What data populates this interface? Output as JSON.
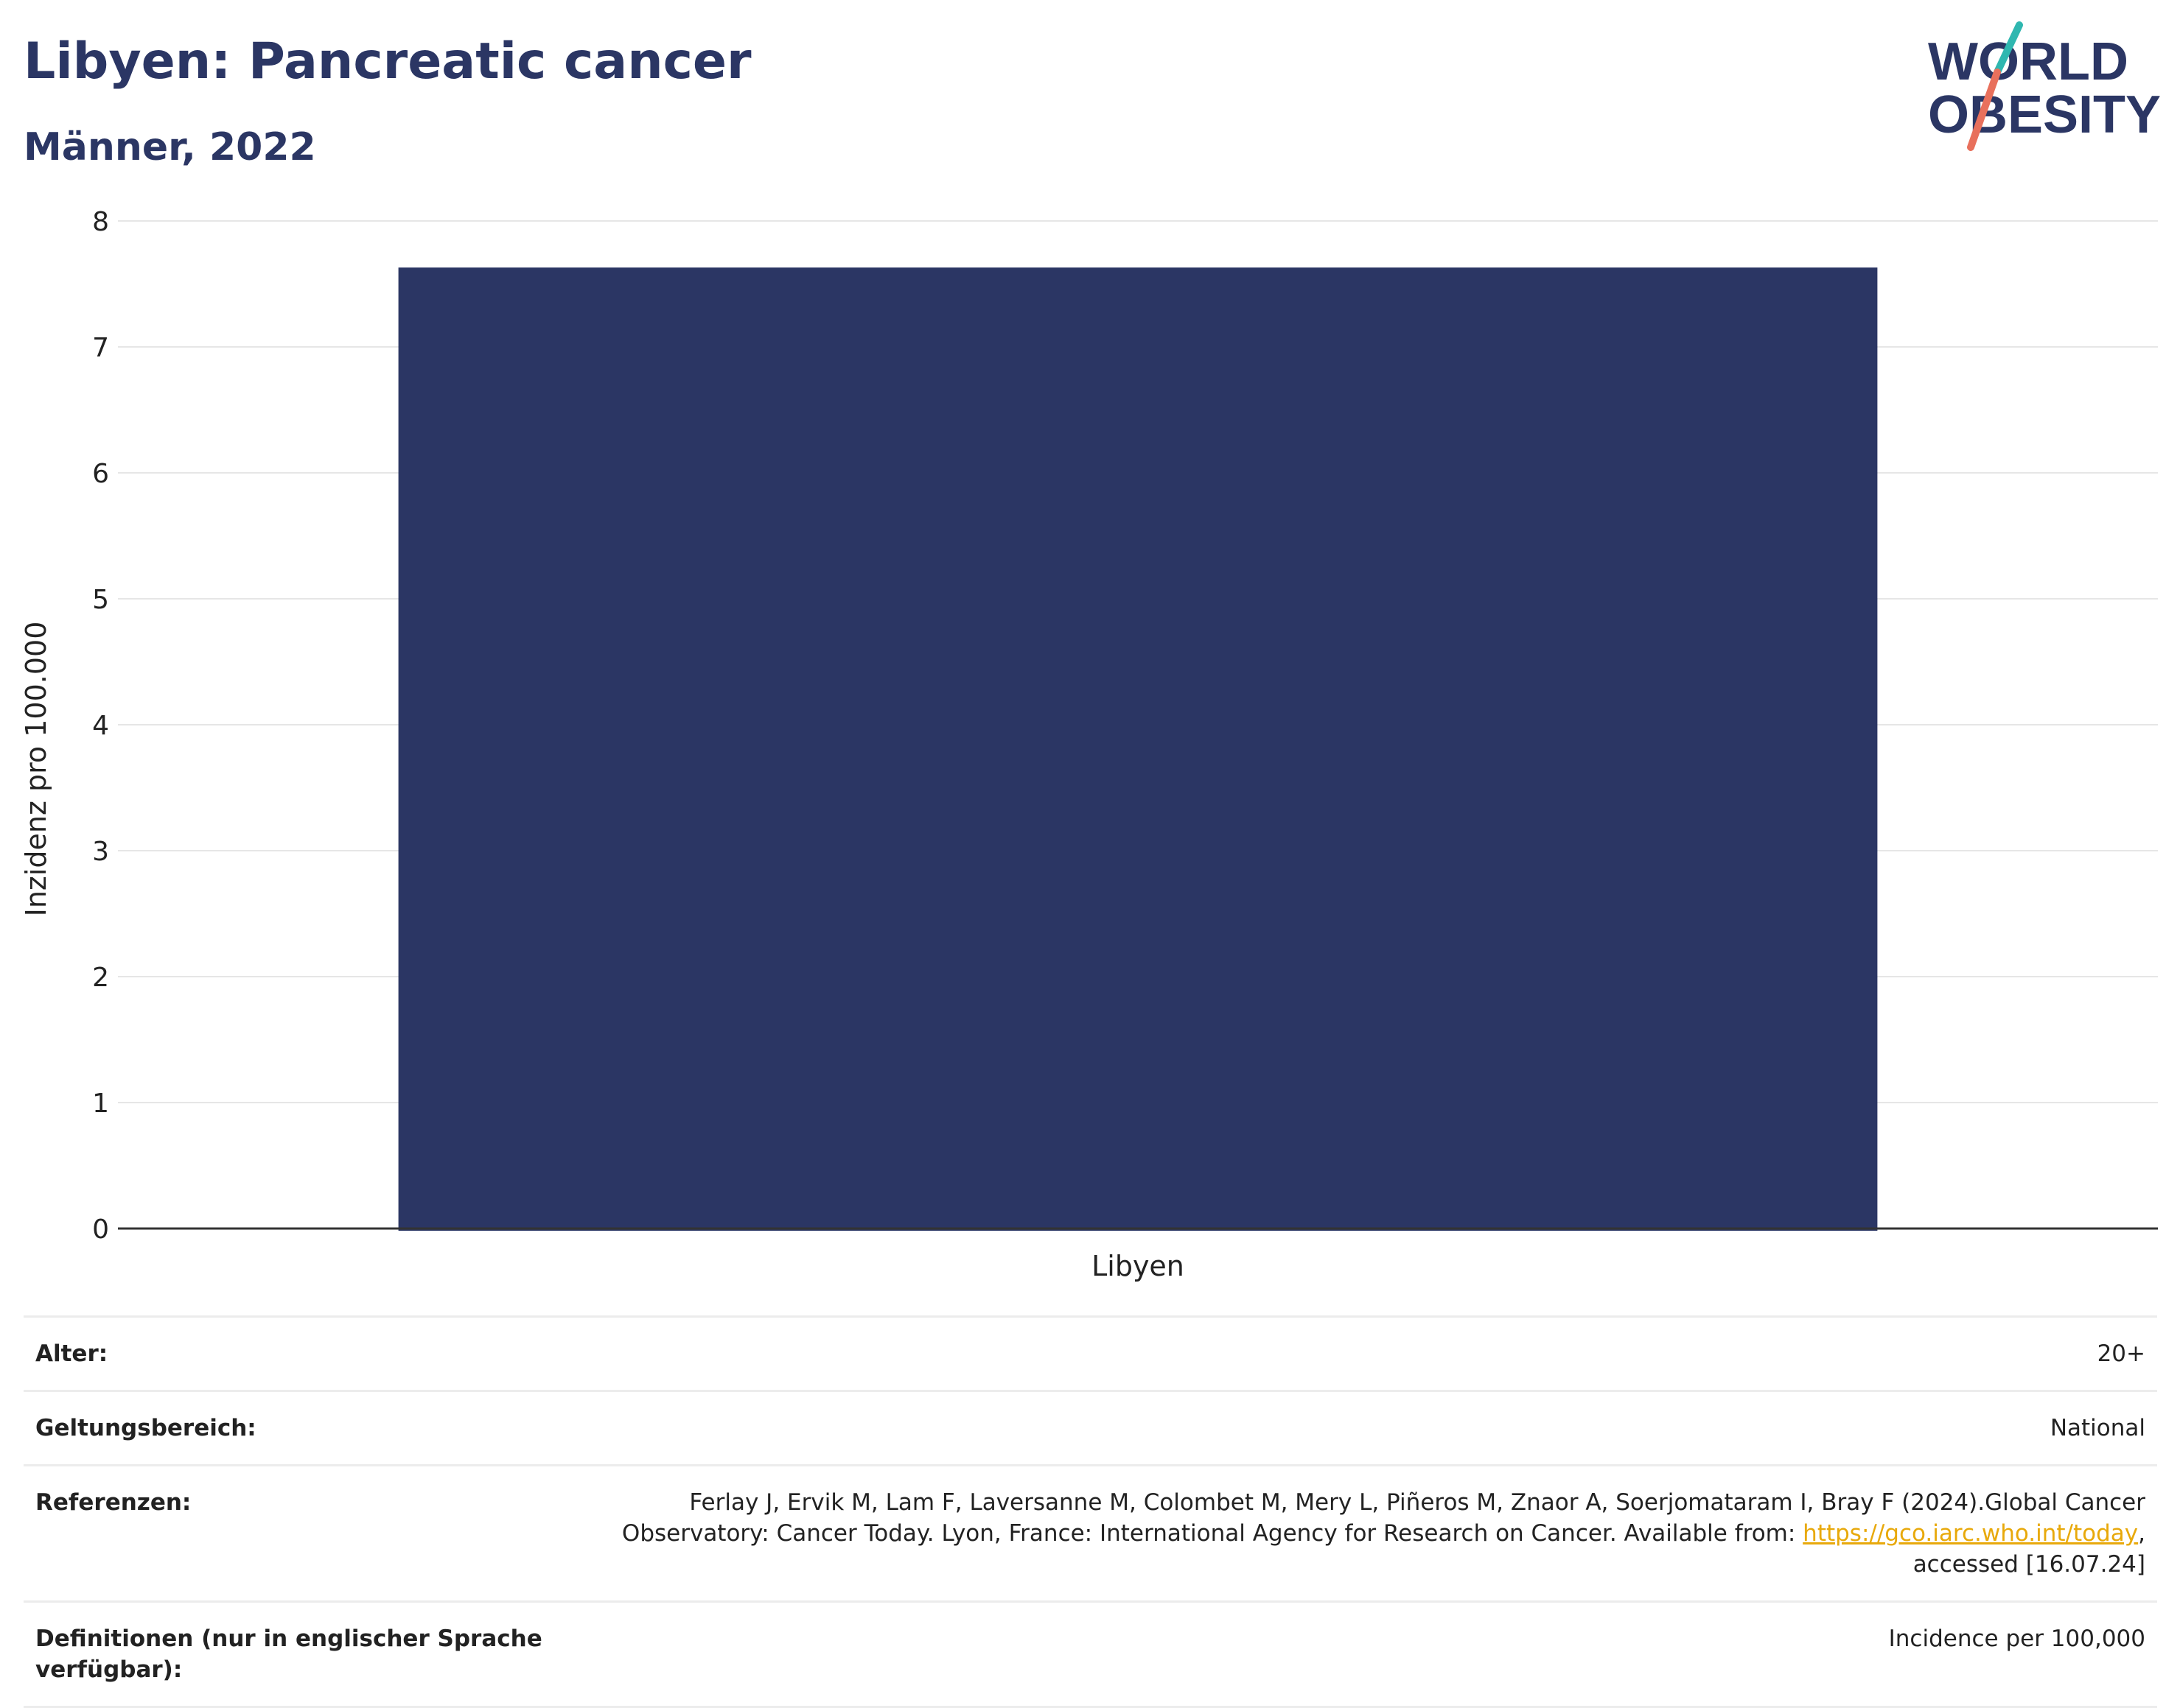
{
  "header": {
    "title": "Libyen: Pancreatic cancer",
    "subtitle": "Männer, 2022"
  },
  "logo": {
    "line1": "WORLD",
    "line2": "OBESITY",
    "accent_colors": [
      "#2fb7b0",
      "#e8705c"
    ]
  },
  "chart_data": {
    "type": "bar",
    "categories": [
      "Libyen"
    ],
    "values": [
      7.63
    ],
    "ylabel": "Inzidenz pro 100.000",
    "xlabel": "",
    "ylim": [
      0,
      8
    ],
    "yticks": [
      0,
      1,
      2,
      3,
      4,
      5,
      6,
      7,
      8
    ],
    "grid": true,
    "bar_color": "#2b3664"
  },
  "info": {
    "age_label": "Alter:",
    "age_value": "20+",
    "scope_label": "Geltungsbereich:",
    "scope_value": "National",
    "refs_label": "Referenzen:",
    "refs_text_1": "Ferlay J, Ervik M, Lam F, Laversanne M, Colombet M, Mery L, Piñeros M, Znaor A, Soerjomataram I, Bray F (2024).Global Cancer Observatory: Cancer Today. Lyon, France: International Agency for Research on Cancer. Available from: ",
    "refs_link": "https://gco.iarc.who.int/today",
    "refs_text_2": ", accessed [16.07.24]",
    "defs_label": "Definitionen (nur in englischer Sprache verfügbar):",
    "defs_value": "Incidence per 100,000"
  }
}
